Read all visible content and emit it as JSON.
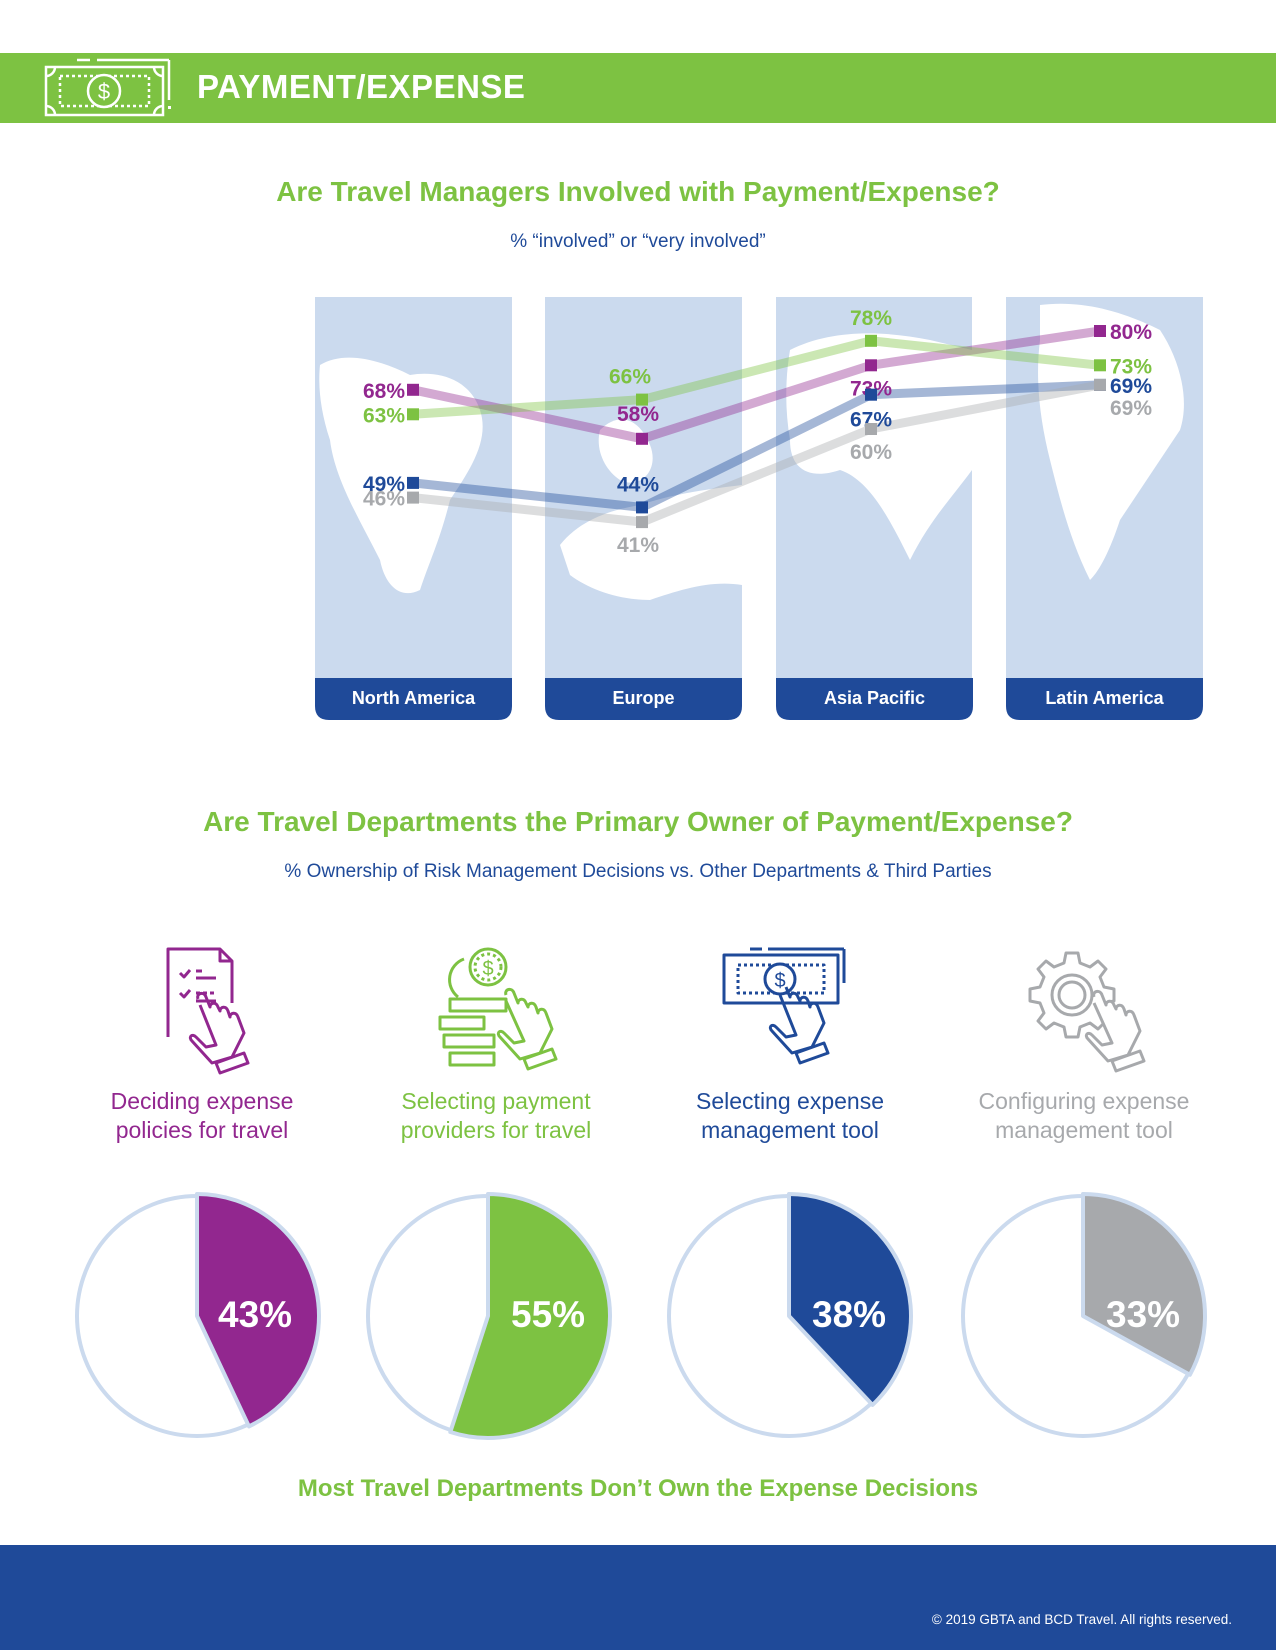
{
  "header": {
    "title": "PAYMENT/EXPENSE",
    "icon": "money-bill-icon"
  },
  "colors": {
    "green": "#7dc242",
    "purple": "#92278f",
    "blue": "#1f4a99",
    "gray": "#a7a9ac",
    "panel": "#cbdaee",
    "ring": "#cbdaee"
  },
  "chart_data": [
    {
      "type": "line",
      "title": "Are Travel Managers Involved with Payment/Expense?",
      "subtitle": "% “involved” or “very involved”",
      "categories": [
        "North America",
        "Europe",
        "Asia Pacific",
        "Latin America"
      ],
      "series": [
        {
          "name": "Deciding expense policies for travel",
          "color": "#92278f",
          "values": [
            68,
            58,
            73,
            80
          ]
        },
        {
          "name": "Selecting payment providers for travel",
          "color": "#7dc242",
          "values": [
            63,
            66,
            78,
            73
          ]
        },
        {
          "name": "Selecting expense management tool",
          "color": "#1f4a99",
          "values": [
            49,
            44,
            67,
            69
          ]
        },
        {
          "name": "Configuring expense management tool",
          "color": "#a7a9ac",
          "values": [
            46,
            41,
            60,
            69
          ]
        }
      ],
      "value_suffix": "%",
      "legend": "left",
      "grid": false
    },
    {
      "type": "pie",
      "title": "Are Travel Departments the Primary Owner of Payment/Expense?",
      "subtitle": "% Ownership of Risk Management Decisions vs. Other Departments & Third Parties",
      "categories": [
        "Deciding expense policies for travel",
        "Selecting payment providers for travel",
        "Selecting expense management tool",
        "Configuring expense management tool"
      ],
      "values": [
        43,
        55,
        38,
        33
      ],
      "colors": [
        "#92278f",
        "#7dc242",
        "#1f4a99",
        "#a7a9ac"
      ],
      "value_suffix": "%",
      "footnote": "Most Travel Departments Don’t Own the Expense Decisions"
    }
  ],
  "legend": [
    {
      "label": "Deciding expense policies for travel",
      "lines": [
        "Deciding expense",
        "policies for travel"
      ],
      "color": "#92278f"
    },
    {
      "label": "Selecting payment providers for travel",
      "lines": [
        "Selecting payment",
        "providers for",
        "travel"
      ],
      "color": "#7dc242"
    },
    {
      "label": "Selecting expense management tool",
      "lines": [
        "Selecting expense",
        "management tool"
      ],
      "color": "#1f4a99"
    },
    {
      "label": "Configuring expense management tool",
      "lines": [
        "Configuring",
        "expense",
        "management tool"
      ],
      "color": "#a7a9ac"
    }
  ],
  "ownership": [
    {
      "icon": "checklist-hand-icon",
      "lines": [
        "Deciding expense",
        "policies for travel"
      ],
      "value": 43,
      "label": "43%",
      "color": "#92278f"
    },
    {
      "icon": "coins-hand-icon",
      "lines": [
        "Selecting payment",
        "providers for travel"
      ],
      "value": 55,
      "label": "55%",
      "color": "#7dc242"
    },
    {
      "icon": "money-bill-hand-icon",
      "lines": [
        "Selecting expense",
        "management tool"
      ],
      "value": 38,
      "label": "38%",
      "color": "#1f4a99"
    },
    {
      "icon": "gear-hand-icon",
      "lines": [
        "Configuring expense",
        "management tool"
      ],
      "value": 33,
      "label": "33%",
      "color": "#a7a9ac"
    }
  ],
  "section1": {
    "title": "Are Travel Managers Involved with Payment/Expense?",
    "subtitle": "% “involved” or “very involved”"
  },
  "section2": {
    "title": "Are Travel Departments the Primary Owner of Payment/Expense?",
    "subtitle": "% Ownership of Risk Management Decisions vs. Other Departments & Third Parties",
    "takeaway": "Most Travel Departments Don’t Own the Expense Decisions"
  },
  "footer": {
    "copyright": "© 2019 GBTA and BCD Travel. All rights reserved."
  }
}
